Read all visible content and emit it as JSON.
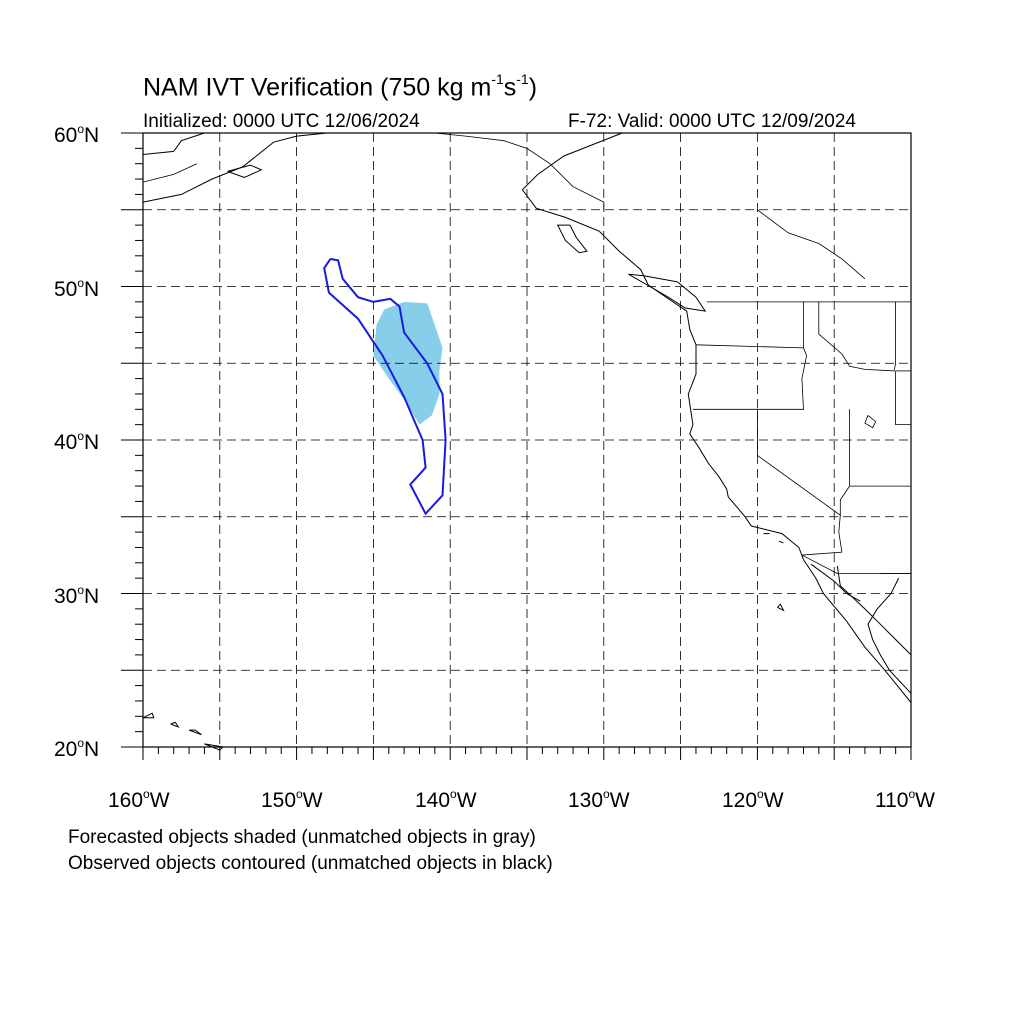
{
  "title": {
    "prefix": "NAM IVT Verification (750 kg m",
    "exp1": "-1",
    "middle": "s",
    "exp2": "-1",
    "suffix": ")"
  },
  "subtitle_left": "Initialized: 0000 UTC 12/06/2024",
  "subtitle_right": "F-72: Valid: 0000 UTC 12/09/2024",
  "lat_labels": [
    {
      "num": "60",
      "deg": "o",
      "hemi": "N"
    },
    {
      "num": "50",
      "deg": "o",
      "hemi": "N"
    },
    {
      "num": "40",
      "deg": "o",
      "hemi": "N"
    },
    {
      "num": "30",
      "deg": "o",
      "hemi": "N"
    },
    {
      "num": "20",
      "deg": "o",
      "hemi": "N"
    }
  ],
  "lon_labels": [
    {
      "num": "160",
      "deg": "o",
      "hemi": "W"
    },
    {
      "num": "150",
      "deg": "o",
      "hemi": "W"
    },
    {
      "num": "140",
      "deg": "o",
      "hemi": "W"
    },
    {
      "num": "130",
      "deg": "o",
      "hemi": "W"
    },
    {
      "num": "120",
      "deg": "o",
      "hemi": "W"
    },
    {
      "num": "110",
      "deg": "o",
      "hemi": "W"
    }
  ],
  "footnote_1": "Forecasted objects shaded (unmatched objects in gray)",
  "footnote_2": "Observed objects contoured (unmatched objects in black)",
  "map": {
    "lon_range": [
      -160,
      -110
    ],
    "lat_range": [
      20,
      60
    ],
    "grid_spacing_deg": 5,
    "grid": "dashed",
    "forecast_object_color": "#87ceeb",
    "observed_contour_color": "#1a1adf",
    "forecast_object": [
      [
        -144.8,
        47.5
      ],
      [
        -144.3,
        48.5
      ],
      [
        -143.0,
        49.0
      ],
      [
        -141.5,
        48.9
      ],
      [
        -141.0,
        47.5
      ],
      [
        -140.5,
        46.0
      ],
      [
        -140.7,
        44.5
      ],
      [
        -140.7,
        43.0
      ],
      [
        -141.2,
        41.6
      ],
      [
        -142.0,
        41.0
      ],
      [
        -142.9,
        42.5
      ],
      [
        -144.0,
        44.0
      ],
      [
        -145.0,
        45.5
      ]
    ],
    "observed_contour": [
      [
        -147.8,
        51.8
      ],
      [
        -148.2,
        51.2
      ],
      [
        -147.9,
        49.6
      ],
      [
        -146.0,
        47.9
      ],
      [
        -144.4,
        45.5
      ],
      [
        -143.0,
        42.8
      ],
      [
        -141.8,
        40.0
      ],
      [
        -141.6,
        38.2
      ],
      [
        -142.6,
        37.1
      ],
      [
        -141.6,
        35.2
      ],
      [
        -140.5,
        36.4
      ],
      [
        -140.3,
        40.0
      ],
      [
        -140.5,
        43.0
      ],
      [
        -141.5,
        45.0
      ],
      [
        -143.0,
        47.0
      ],
      [
        -143.3,
        48.7
      ],
      [
        -143.9,
        49.2
      ],
      [
        -145.0,
        49.0
      ],
      [
        -146.0,
        49.3
      ],
      [
        -147.0,
        50.5
      ],
      [
        -147.3,
        51.7
      ],
      [
        -147.8,
        51.8
      ]
    ],
    "coastline": [
      [
        [
          -128.8,
          60.0
        ],
        [
          -132.6,
          58.5
        ],
        [
          -134.3,
          57.3
        ],
        [
          -135.3,
          56.3
        ],
        [
          -134.4,
          55.1
        ],
        [
          -132.5,
          54.5
        ],
        [
          -130.3,
          53.6
        ],
        [
          -129.0,
          52.3
        ],
        [
          -127.6,
          51.1
        ],
        [
          -127.1,
          50.1
        ],
        [
          -125.5,
          49.0
        ],
        [
          -124.6,
          48.4
        ],
        [
          -124.4,
          47.2
        ],
        [
          -124.0,
          46.2
        ],
        [
          -124.0,
          44.3
        ],
        [
          -124.5,
          43.0
        ],
        [
          -124.2,
          41.0
        ],
        [
          -124.4,
          40.4
        ],
        [
          -123.8,
          39.5
        ],
        [
          -123.2,
          38.5
        ],
        [
          -122.5,
          37.6
        ],
        [
          -122.0,
          36.8
        ],
        [
          -121.9,
          36.3
        ],
        [
          -120.8,
          35.0
        ],
        [
          -120.4,
          34.4
        ],
        [
          -118.4,
          33.9
        ],
        [
          -117.3,
          33.0
        ],
        [
          -117.0,
          32.2
        ],
        [
          -116.2,
          31.0
        ],
        [
          -115.7,
          30.0
        ],
        [
          -114.2,
          28.2
        ],
        [
          -113.0,
          26.5
        ],
        [
          -111.7,
          25.0
        ],
        [
          -110.0,
          22.9
        ]
      ],
      [
        [
          -114.8,
          31.8
        ],
        [
          -114.6,
          30.5
        ],
        [
          -113.0,
          29.0
        ],
        [
          -112.0,
          28.0
        ],
        [
          -111.0,
          27.0
        ],
        [
          -110.0,
          26.0
        ]
      ],
      [
        [
          -110.8,
          31.0
        ],
        [
          -111.3,
          30.0
        ],
        [
          -112.2,
          29.0
        ],
        [
          -112.8,
          28.0
        ],
        [
          -112.5,
          27.0
        ],
        [
          -112.0,
          26.0
        ],
        [
          -111.4,
          25.0
        ],
        [
          -110.0,
          23.5
        ]
      ],
      [
        [
          -116.5,
          31.9
        ],
        [
          -115.0,
          30.8
        ],
        [
          -114.2,
          30.0
        ],
        [
          -113.3,
          29.5
        ]
      ],
      [
        [
          -125.2,
          50.3
        ],
        [
          -124.0,
          49.3
        ],
        [
          -123.4,
          48.4
        ],
        [
          -124.7,
          48.6
        ],
        [
          -125.8,
          49.3
        ],
        [
          -127.0,
          50.0
        ],
        [
          -128.4,
          50.8
        ],
        [
          -127.4,
          50.7
        ],
        [
          -125.2,
          50.3
        ]
      ],
      [
        [
          -132.2,
          54.0
        ],
        [
          -131.8,
          53.2
        ],
        [
          -131.1,
          52.3
        ],
        [
          -131.6,
          52.2
        ],
        [
          -132.5,
          53.0
        ],
        [
          -133.0,
          54.0
        ],
        [
          -132.2,
          54.0
        ]
      ],
      [
        [
          -160.0,
          58.6
        ],
        [
          -158.0,
          58.8
        ],
        [
          -157.5,
          59.5
        ],
        [
          -156.0,
          60.0
        ]
      ],
      [
        [
          -160.0,
          55.5
        ],
        [
          -157.5,
          56.0
        ],
        [
          -155.5,
          57.0
        ],
        [
          -153.5,
          57.8
        ],
        [
          -152.5,
          58.6
        ],
        [
          -151.5,
          59.4
        ],
        [
          -150.0,
          59.8
        ],
        [
          -148.0,
          60.0
        ]
      ],
      [
        [
          -154.5,
          57.5
        ],
        [
          -153.0,
          57.9
        ],
        [
          -152.3,
          57.6
        ],
        [
          -153.4,
          57.1
        ],
        [
          -154.5,
          57.5
        ]
      ],
      [
        [
          -160.0,
          21.9
        ],
        [
          -159.4,
          22.2
        ],
        [
          -159.3,
          21.9
        ],
        [
          -160.0,
          21.9
        ]
      ],
      [
        [
          -158.2,
          21.5
        ],
        [
          -157.7,
          21.3
        ],
        [
          -157.9,
          21.6
        ],
        [
          -158.2,
          21.5
        ]
      ],
      [
        [
          -157.0,
          21.1
        ],
        [
          -156.2,
          20.8
        ],
        [
          -156.6,
          21.1
        ],
        [
          -157.0,
          21.1
        ]
      ],
      [
        [
          -156.0,
          20.2
        ],
        [
          -155.0,
          19.8
        ],
        [
          -154.8,
          20.0
        ],
        [
          -156.0,
          20.2
        ]
      ],
      [
        [
          -118.7,
          29.1
        ],
        [
          -118.3,
          28.9
        ],
        [
          -118.5,
          29.3
        ],
        [
          -118.7,
          29.1
        ]
      ],
      [
        [
          -119.6,
          33.9
        ],
        [
          -119.2,
          33.9
        ]
      ],
      [
        [
          -118.6,
          33.4
        ],
        [
          -118.3,
          33.3
        ]
      ]
    ],
    "borders": [
      [
        [
          -123.3,
          49.0
        ],
        [
          -110.0,
          49.0
        ]
      ],
      [
        [
          -124.0,
          46.2
        ],
        [
          -117.0,
          46.0
        ],
        [
          -116.8,
          45.5
        ],
        [
          -117.1,
          44.0
        ],
        [
          -117.0,
          42.0
        ],
        [
          -124.2,
          42.0
        ]
      ],
      [
        [
          -117.0,
          49.0
        ],
        [
          -117.0,
          46.0
        ]
      ],
      [
        [
          -116.0,
          49.0
        ],
        [
          -116.0,
          46.9
        ],
        [
          -114.5,
          45.6
        ],
        [
          -114.0,
          44.8
        ],
        [
          -113.0,
          44.6
        ],
        [
          -111.1,
          44.5
        ],
        [
          -111.0,
          45.0
        ],
        [
          -111.0,
          49.0
        ]
      ],
      [
        [
          -111.0,
          44.5
        ],
        [
          -110.0,
          44.5
        ]
      ],
      [
        [
          -111.0,
          44.5
        ],
        [
          -111.0,
          41.0
        ],
        [
          -110.0,
          41.0
        ]
      ],
      [
        [
          -114.0,
          42.0
        ],
        [
          -114.0,
          37.0
        ],
        [
          -114.6,
          36.1
        ],
        [
          -114.6,
          35.1
        ],
        [
          -120.0,
          39.0
        ],
        [
          -120.0,
          42.0
        ]
      ],
      [
        [
          -114.0,
          37.0
        ],
        [
          -110.0,
          37.0
        ]
      ],
      [
        [
          -114.6,
          35.1
        ],
        [
          -114.7,
          34.0
        ],
        [
          -114.5,
          32.7
        ],
        [
          -117.1,
          32.5
        ],
        [
          -114.8,
          31.3
        ],
        [
          -110.0,
          31.3
        ]
      ],
      [
        [
          -141.0,
          60.0
        ],
        [
          -139.0,
          59.8
        ],
        [
          -136.5,
          59.5
        ],
        [
          -135.0,
          59.0
        ],
        [
          -133.5,
          58.0
        ],
        [
          -132.0,
          56.5
        ],
        [
          -130.0,
          55.5
        ],
        [
          -130.0,
          55.0
        ]
      ],
      [
        [
          -112.0,
          31.3
        ],
        [
          -110.0,
          31.3
        ]
      ]
    ],
    "inland_water": [
      [
        [
          -112.8,
          41.6
        ],
        [
          -112.3,
          41.2
        ],
        [
          -112.5,
          40.8
        ],
        [
          -113.0,
          41.1
        ],
        [
          -112.8,
          41.6
        ]
      ],
      [
        [
          -120.0,
          55.0
        ],
        [
          -118.0,
          53.5
        ],
        [
          -116.0,
          52.8
        ],
        [
          -114.5,
          51.8
        ],
        [
          -113.0,
          50.5
        ]
      ],
      [
        [
          -160.0,
          56.8
        ],
        [
          -158.0,
          57.3
        ],
        [
          -156.5,
          58.0
        ]
      ]
    ]
  }
}
